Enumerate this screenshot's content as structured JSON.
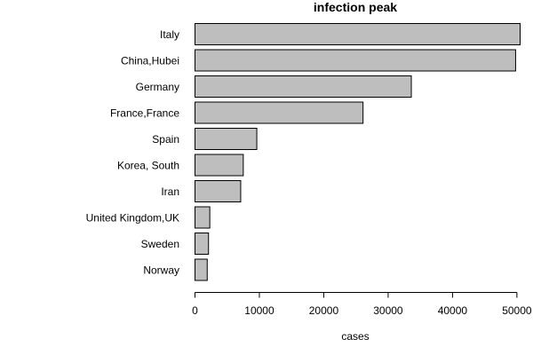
{
  "chart_data": {
    "type": "bar",
    "orientation": "horizontal",
    "title": "infection peak",
    "xlabel": "cases",
    "ylabel": "",
    "categories": [
      "Italy",
      "China,Hubei",
      "Germany",
      "France,France",
      "Spain",
      "Korea, South",
      "Iran",
      "United Kingdom,UK",
      "Sweden",
      "Norway"
    ],
    "values": [
      50500,
      49800,
      33600,
      26100,
      9600,
      7500,
      7100,
      2300,
      2100,
      1900
    ],
    "xlim": [
      0,
      50500
    ],
    "xticks": [
      0,
      10000,
      20000,
      30000,
      40000,
      50000
    ],
    "bar_color": "#bebebe",
    "grid": false
  }
}
